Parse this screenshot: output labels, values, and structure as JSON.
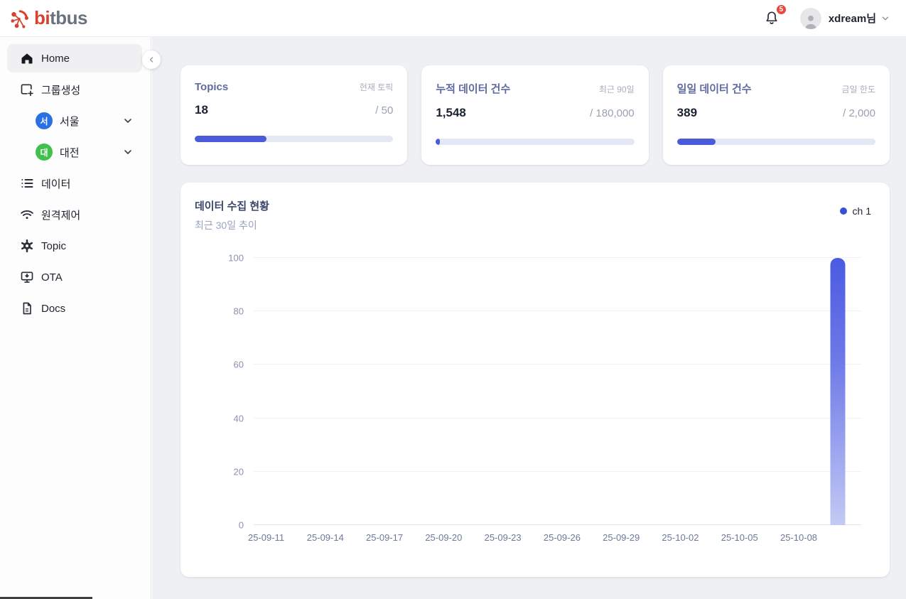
{
  "header": {
    "logo_primary": "bi",
    "logo_secondary": "tbus",
    "notification_count": "5",
    "user_name": "xdream님"
  },
  "sidebar": {
    "items": [
      {
        "label": "Home",
        "icon": "home-icon",
        "active": true
      },
      {
        "label": "그룹생성",
        "icon": "window-plus-icon"
      },
      {
        "label": "서울",
        "icon": "group-badge",
        "badge_letter": "서",
        "badge_color": "#2b6fe4",
        "expandable": true
      },
      {
        "label": "대전",
        "icon": "group-badge",
        "badge_letter": "대",
        "badge_color": "#3fc14b",
        "expandable": true
      },
      {
        "label": "데이터",
        "icon": "list-icon"
      },
      {
        "label": "원격제어",
        "icon": "wifi-icon"
      },
      {
        "label": "Topic",
        "icon": "gear-icon"
      },
      {
        "label": "OTA",
        "icon": "monitor-download-icon"
      },
      {
        "label": "Docs",
        "icon": "document-icon"
      }
    ]
  },
  "stat_cards": [
    {
      "title": "Topics",
      "tag": "현재 토픽",
      "value": "18",
      "max": "/ 50",
      "progress_pct": 36
    },
    {
      "title": "누적 데이터 건수",
      "tag": "최근 90일",
      "value": "1,548",
      "max": "/ 180,000",
      "progress_pct": 0.86
    },
    {
      "title": "일일 데이터 건수",
      "tag": "금일 한도",
      "value": "389",
      "max": "/ 2,000",
      "progress_pct": 19.45
    }
  ],
  "chart_card": {
    "title": "데이터 수집 현황",
    "subtitle": "최근 30일 추이",
    "legend_label": "ch 1"
  },
  "chart_data": {
    "type": "bar",
    "title": "데이터 수집 현황",
    "subtitle": "최근 30일 추이",
    "legend": [
      {
        "name": "ch 1",
        "color": "#3b4fd4",
        "position": "top-right"
      }
    ],
    "x_ticks": [
      "25-09-11",
      "25-09-14",
      "25-09-17",
      "25-09-20",
      "25-09-23",
      "25-09-26",
      "25-09-29",
      "25-10-02",
      "25-10-05",
      "25-10-08"
    ],
    "y_ticks": [
      0,
      20,
      40,
      60,
      80,
      100
    ],
    "ylim": [
      0,
      100
    ],
    "grid": true,
    "x_start_fraction": 0.0205,
    "x_step_fraction": 0.0974,
    "series": [
      {
        "name": "ch 1",
        "bars": [
          {
            "x_fraction": 0.961,
            "value": 100
          }
        ]
      }
    ]
  },
  "colors": {
    "accent_blue": "#4a5ad9",
    "bar_gradient_top": "#4b5ae2",
    "bar_gradient_bottom": "#c3caf4",
    "progress_track": "#e4e8f5",
    "logo_red": "#d8402f",
    "logo_gray": "#6a7280",
    "badge_red": "#e8483f",
    "content_background": "#eef0f4",
    "seoul_badge": "#2b6fe4",
    "daejeon_badge": "#3fc14b"
  }
}
